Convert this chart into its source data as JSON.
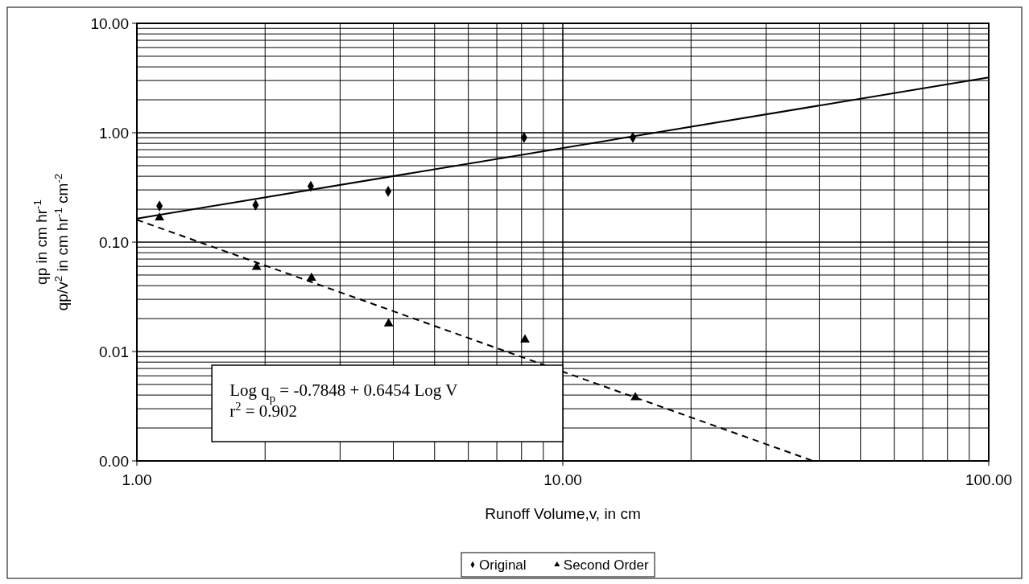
{
  "chart_data": {
    "type": "scatter",
    "xlabel": "Runoff Volume,v, in cm",
    "ylabel": "qp in cm hr$^{-1}$\nqp/v$^{2}$ in cm hr$^{-1}$ cm$^{-2}$",
    "log": "xy",
    "xlim": [
      1,
      100
    ],
    "ylim": [
      0.001,
      10
    ],
    "xticks": [
      {
        "value": 1,
        "label": "1.00"
      },
      {
        "value": 10,
        "label": "10.00"
      },
      {
        "value": 100,
        "label": "100.00"
      }
    ],
    "yticks": [
      {
        "value": 0.001,
        "label": "0.00"
      },
      {
        "value": 0.01,
        "label": "0.01"
      },
      {
        "value": 0.1,
        "label": "0.10"
      },
      {
        "value": 1,
        "label": "1.00"
      },
      {
        "value": 10,
        "label": "10.00"
      }
    ],
    "grid": true,
    "legend": "bottom",
    "series": [
      {
        "name": "Original",
        "marker": "diamond",
        "color": "#000000",
        "x": [
          1.13,
          1.9,
          2.56,
          3.89,
          8.11,
          14.6
        ],
        "values": [
          0.214,
          0.218,
          0.324,
          0.291,
          0.905,
          0.905
        ]
      },
      {
        "name": "Second Order",
        "marker": "triangle",
        "color": "#000000",
        "x": [
          1.13,
          1.91,
          2.57,
          3.9,
          8.15,
          14.8
        ],
        "values": [
          0.167,
          0.059,
          0.047,
          0.018,
          0.0128,
          0.0038
        ]
      },
      {
        "type": "line",
        "line_style": "solid",
        "color": "#000000",
        "x": [
          1,
          100
        ],
        "values": [
          0.164,
          3.2
        ]
      },
      {
        "type": "line",
        "line_style": "dashed",
        "color": "#000000",
        "x": [
          1,
          38.7
        ],
        "values": [
          0.16,
          0.001
        ]
      }
    ],
    "annotations": [
      "Log q$_{p}$ = -0.7848 + 0.6454 Log V",
      "r$^{2}$ = 0.902"
    ]
  }
}
